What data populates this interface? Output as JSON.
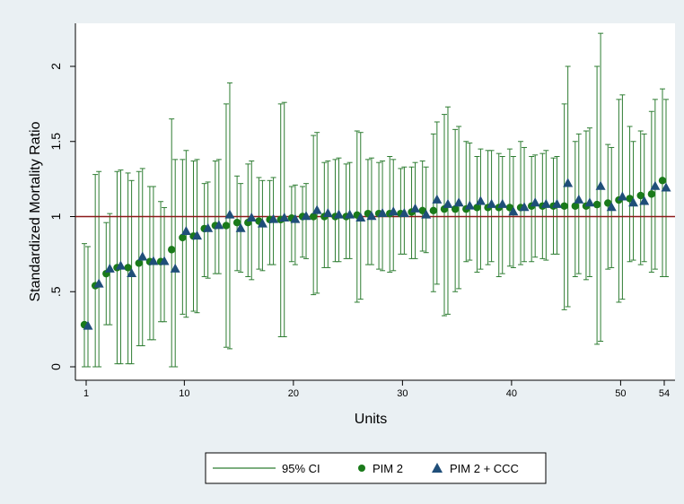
{
  "chart_data": {
    "type": "scatter",
    "xlabel": "Units",
    "ylabel": "Standardized Mortality Ratio",
    "xlim": [
      1,
      54
    ],
    "ylim": [
      0,
      2.2
    ],
    "x_ticks": [
      1,
      10,
      20,
      30,
      40,
      50,
      54
    ],
    "y_ticks": [
      0,
      0.5,
      1,
      1.5,
      2
    ],
    "y_tick_labels": [
      "0",
      ".5",
      "1",
      "1.5",
      "2"
    ],
    "reference_line": {
      "y": 1,
      "color": "#8b1a1a"
    },
    "legend": {
      "placement": "bottom",
      "entries": [
        "95% CI",
        "PIM 2",
        "PIM 2 + CCC"
      ]
    },
    "colors": {
      "pim2": "#1a7a1a",
      "pim2_ccc": "#1f4e79",
      "ci": "#2e7d32",
      "plot_bg": "#ffffff",
      "outer_bg": "#eaf0f3"
    },
    "series": [
      {
        "name": "PIM 2",
        "marker": "circle",
        "x": [
          1,
          2,
          3,
          4,
          5,
          6,
          7,
          8,
          9,
          10,
          11,
          12,
          13,
          14,
          15,
          16,
          17,
          18,
          19,
          20,
          21,
          22,
          23,
          24,
          25,
          26,
          27,
          28,
          29,
          30,
          31,
          32,
          33,
          34,
          35,
          36,
          37,
          38,
          39,
          40,
          41,
          42,
          43,
          44,
          45,
          46,
          47,
          48,
          49,
          50,
          51,
          52,
          53,
          54
        ],
        "y": [
          0.28,
          0.54,
          0.62,
          0.66,
          0.66,
          0.69,
          0.7,
          0.7,
          0.78,
          0.86,
          0.87,
          0.92,
          0.94,
          0.94,
          0.96,
          0.96,
          0.97,
          0.98,
          0.98,
          0.99,
          1.0,
          1.0,
          1.0,
          1.0,
          1.0,
          1.01,
          1.02,
          1.02,
          1.02,
          1.02,
          1.03,
          1.04,
          1.04,
          1.05,
          1.05,
          1.05,
          1.06,
          1.06,
          1.06,
          1.06,
          1.06,
          1.07,
          1.07,
          1.07,
          1.07,
          1.07,
          1.07,
          1.08,
          1.09,
          1.11,
          1.12,
          1.14,
          1.15,
          1.24
        ],
        "ci_low": [
          0.0,
          0.0,
          0.28,
          0.02,
          0.02,
          0.14,
          0.18,
          0.3,
          0.0,
          0.35,
          0.37,
          0.6,
          0.62,
          0.13,
          0.64,
          0.6,
          0.65,
          0.68,
          0.2,
          0.7,
          0.73,
          0.48,
          0.66,
          0.7,
          0.72,
          0.43,
          0.68,
          0.65,
          0.63,
          0.75,
          0.72,
          0.77,
          0.5,
          0.34,
          0.5,
          0.7,
          0.63,
          0.68,
          0.6,
          0.67,
          0.68,
          0.7,
          0.72,
          0.75,
          0.38,
          0.6,
          0.58,
          0.15,
          0.65,
          0.43,
          0.7,
          0.68,
          0.63,
          0.6
        ],
        "ci_high": [
          0.82,
          1.28,
          0.96,
          1.3,
          1.29,
          1.3,
          1.2,
          1.1,
          1.65,
          1.38,
          1.37,
          1.22,
          1.37,
          1.75,
          1.27,
          1.35,
          1.26,
          1.24,
          1.75,
          1.2,
          1.2,
          1.54,
          1.36,
          1.38,
          1.35,
          1.57,
          1.38,
          1.36,
          1.4,
          1.32,
          1.33,
          1.37,
          1.55,
          1.68,
          1.58,
          1.5,
          1.4,
          1.44,
          1.42,
          1.45,
          1.5,
          1.4,
          1.42,
          1.39,
          1.75,
          1.5,
          1.57,
          2.0,
          1.48,
          1.78,
          1.6,
          1.57,
          1.7,
          1.85
        ]
      },
      {
        "name": "PIM 2 + CCC",
        "marker": "triangle",
        "x": [
          1,
          2,
          3,
          4,
          5,
          6,
          7,
          8,
          9,
          10,
          11,
          12,
          13,
          14,
          15,
          16,
          17,
          18,
          19,
          20,
          21,
          22,
          23,
          24,
          25,
          26,
          27,
          28,
          29,
          30,
          31,
          32,
          33,
          34,
          35,
          36,
          37,
          38,
          39,
          40,
          41,
          42,
          43,
          44,
          45,
          46,
          47,
          48,
          49,
          50,
          51,
          52,
          53,
          54
        ],
        "y": [
          0.27,
          0.55,
          0.65,
          0.67,
          0.62,
          0.73,
          0.7,
          0.7,
          0.65,
          0.9,
          0.87,
          0.92,
          0.94,
          1.01,
          0.92,
          0.99,
          0.95,
          0.98,
          0.99,
          0.98,
          1.0,
          1.04,
          1.02,
          1.01,
          1.01,
          0.99,
          1.0,
          1.02,
          1.03,
          1.02,
          1.05,
          1.01,
          1.11,
          1.08,
          1.09,
          1.07,
          1.1,
          1.08,
          1.08,
          1.03,
          1.06,
          1.09,
          1.08,
          1.08,
          1.22,
          1.11,
          1.09,
          1.2,
          1.06,
          1.13,
          1.09,
          1.1,
          1.2,
          1.19
        ],
        "ci_low": [
          0.0,
          0.0,
          0.28,
          0.02,
          0.02,
          0.14,
          0.18,
          0.3,
          0.0,
          0.33,
          0.36,
          0.59,
          0.62,
          0.12,
          0.63,
          0.58,
          0.64,
          0.68,
          0.2,
          0.68,
          0.72,
          0.49,
          0.66,
          0.7,
          0.72,
          0.45,
          0.68,
          0.64,
          0.64,
          0.75,
          0.72,
          0.76,
          0.55,
          0.35,
          0.52,
          0.71,
          0.65,
          0.7,
          0.62,
          0.66,
          0.7,
          0.73,
          0.71,
          0.75,
          0.4,
          0.62,
          0.6,
          0.17,
          0.66,
          0.45,
          0.71,
          0.7,
          0.65,
          0.6
        ],
        "ci_high": [
          0.8,
          1.3,
          1.02,
          1.31,
          1.24,
          1.32,
          1.2,
          1.06,
          1.38,
          1.44,
          1.38,
          1.23,
          1.38,
          1.89,
          1.22,
          1.37,
          1.24,
          1.26,
          1.76,
          1.21,
          1.22,
          1.56,
          1.37,
          1.39,
          1.36,
          1.56,
          1.39,
          1.37,
          1.38,
          1.33,
          1.36,
          1.33,
          1.63,
          1.73,
          1.6,
          1.49,
          1.45,
          1.44,
          1.4,
          1.4,
          1.46,
          1.41,
          1.44,
          1.4,
          2.0,
          1.55,
          1.59,
          2.22,
          1.46,
          1.81,
          1.5,
          1.55,
          1.78,
          1.78
        ]
      }
    ]
  }
}
